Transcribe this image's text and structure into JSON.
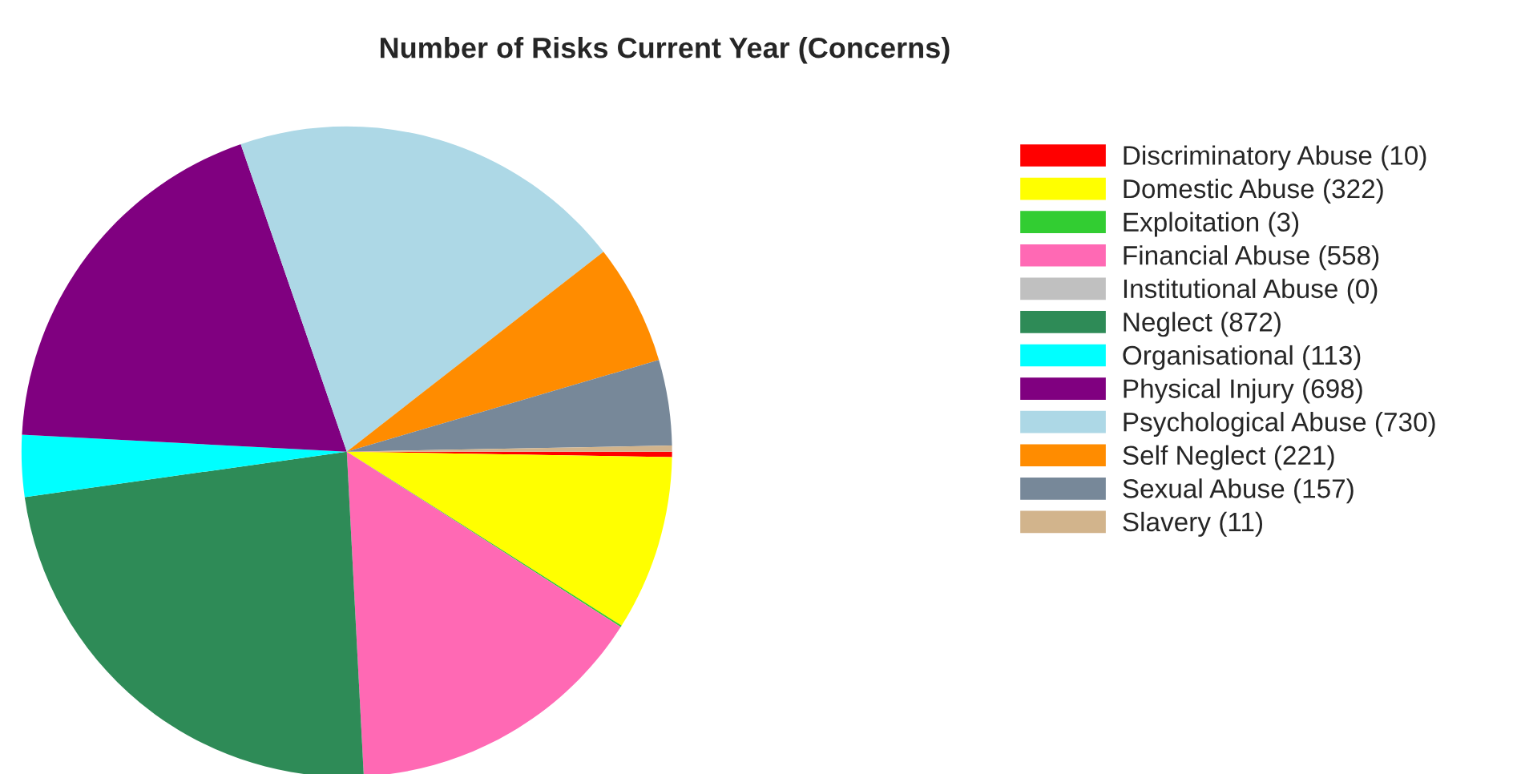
{
  "chart_data": {
    "type": "pie",
    "title": "Number of Risks Current Year (Concerns)",
    "categories": [
      "Discriminatory Abuse (10)",
      "Domestic Abuse (322)",
      "Exploitation (3)",
      "Financial Abuse (558)",
      "Institutional Abuse (0)",
      "Neglect (872)",
      "Organisational (113)",
      "Physical Injury (698)",
      "Psychological Abuse (730)",
      "Self Neglect (221)",
      "Sexual Abuse (157)",
      "Slavery (11)"
    ],
    "values": [
      10,
      322,
      3,
      558,
      0,
      872,
      113,
      698,
      730,
      221,
      157,
      11
    ],
    "colors": [
      "#ff0000",
      "#ffff00",
      "#32cd32",
      "#ff69b4",
      "#c0c0c0",
      "#2e8b57",
      "#00ffff",
      "#800080",
      "#add8e6",
      "#ff8c00",
      "#778899",
      "#d2b48c"
    ],
    "legend": "right"
  }
}
